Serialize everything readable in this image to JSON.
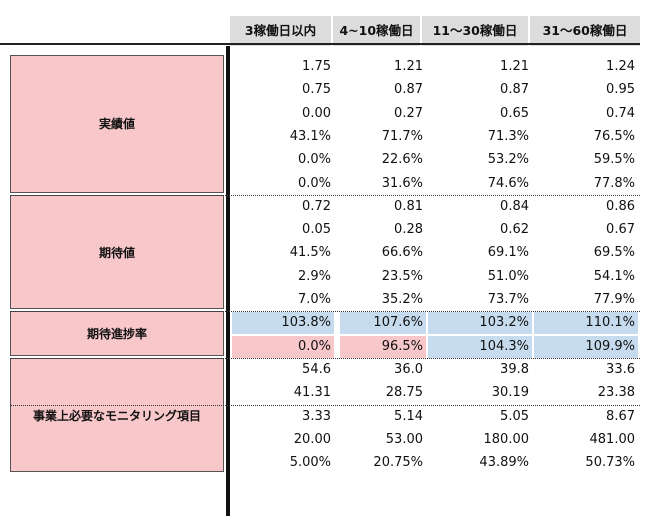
{
  "headers": [
    "3稼働日以内",
    "4~10稼働日",
    "11〜30稼働日",
    "31〜60稼働日"
  ],
  "groups": {
    "actual": "実績値",
    "expected": "期待値",
    "progress": "期待進捗率",
    "monitoring": "事業上必要なモニタリング項目"
  },
  "rows": [
    {
      "group": "actual",
      "values": [
        "1.75",
        "1.21",
        "1.21",
        "1.24"
      ]
    },
    {
      "group": "actual",
      "values": [
        "0.75",
        "0.87",
        "0.87",
        "0.95"
      ]
    },
    {
      "group": "actual",
      "values": [
        "0.00",
        "0.27",
        "0.65",
        "0.74"
      ]
    },
    {
      "group": "actual",
      "values": [
        "43.1%",
        "71.7%",
        "71.3%",
        "76.5%"
      ]
    },
    {
      "group": "actual",
      "values": [
        "0.0%",
        "22.6%",
        "53.2%",
        "59.5%"
      ]
    },
    {
      "group": "actual",
      "values": [
        "0.0%",
        "31.6%",
        "74.6%",
        "77.8%"
      ]
    },
    {
      "group": "expected",
      "values": [
        "0.72",
        "0.81",
        "0.84",
        "0.86"
      ]
    },
    {
      "group": "expected",
      "values": [
        "0.05",
        "0.28",
        "0.62",
        "0.67"
      ]
    },
    {
      "group": "expected",
      "values": [
        "41.5%",
        "66.6%",
        "69.1%",
        "69.5%"
      ]
    },
    {
      "group": "expected",
      "values": [
        "2.9%",
        "23.5%",
        "51.0%",
        "54.1%"
      ]
    },
    {
      "group": "expected",
      "values": [
        "7.0%",
        "35.2%",
        "73.7%",
        "77.9%"
      ]
    },
    {
      "group": "progress",
      "values": [
        "103.8%",
        "107.6%",
        "103.2%",
        "110.1%"
      ],
      "fills": [
        "blue",
        "blue",
        "blue",
        "blue"
      ]
    },
    {
      "group": "progress",
      "values": [
        "0.0%",
        "96.5%",
        "104.3%",
        "109.9%"
      ],
      "fills": [
        "pink",
        "pink",
        "blue",
        "blue"
      ]
    },
    {
      "group": "monitoring",
      "values": [
        "54.6",
        "36.0",
        "39.8",
        "33.6"
      ]
    },
    {
      "group": "monitoring",
      "values": [
        "41.31",
        "28.75",
        "30.19",
        "23.38"
      ]
    },
    {
      "group": "monitoring",
      "values": [
        "3.33",
        "5.14",
        "5.05",
        "8.67"
      ]
    },
    {
      "group": "monitoring",
      "values": [
        "20.00",
        "53.00",
        "180.00",
        "481.00"
      ]
    },
    {
      "group": "monitoring",
      "values": [
        "5.00%",
        "20.75%",
        "43.89%",
        "50.73%"
      ]
    }
  ],
  "colors": {
    "label_fill": "#f7c7ca",
    "header_fill": "#dcdcdc",
    "highlight_blue": "#c6dcee",
    "highlight_pink": "#f7c7ca"
  }
}
